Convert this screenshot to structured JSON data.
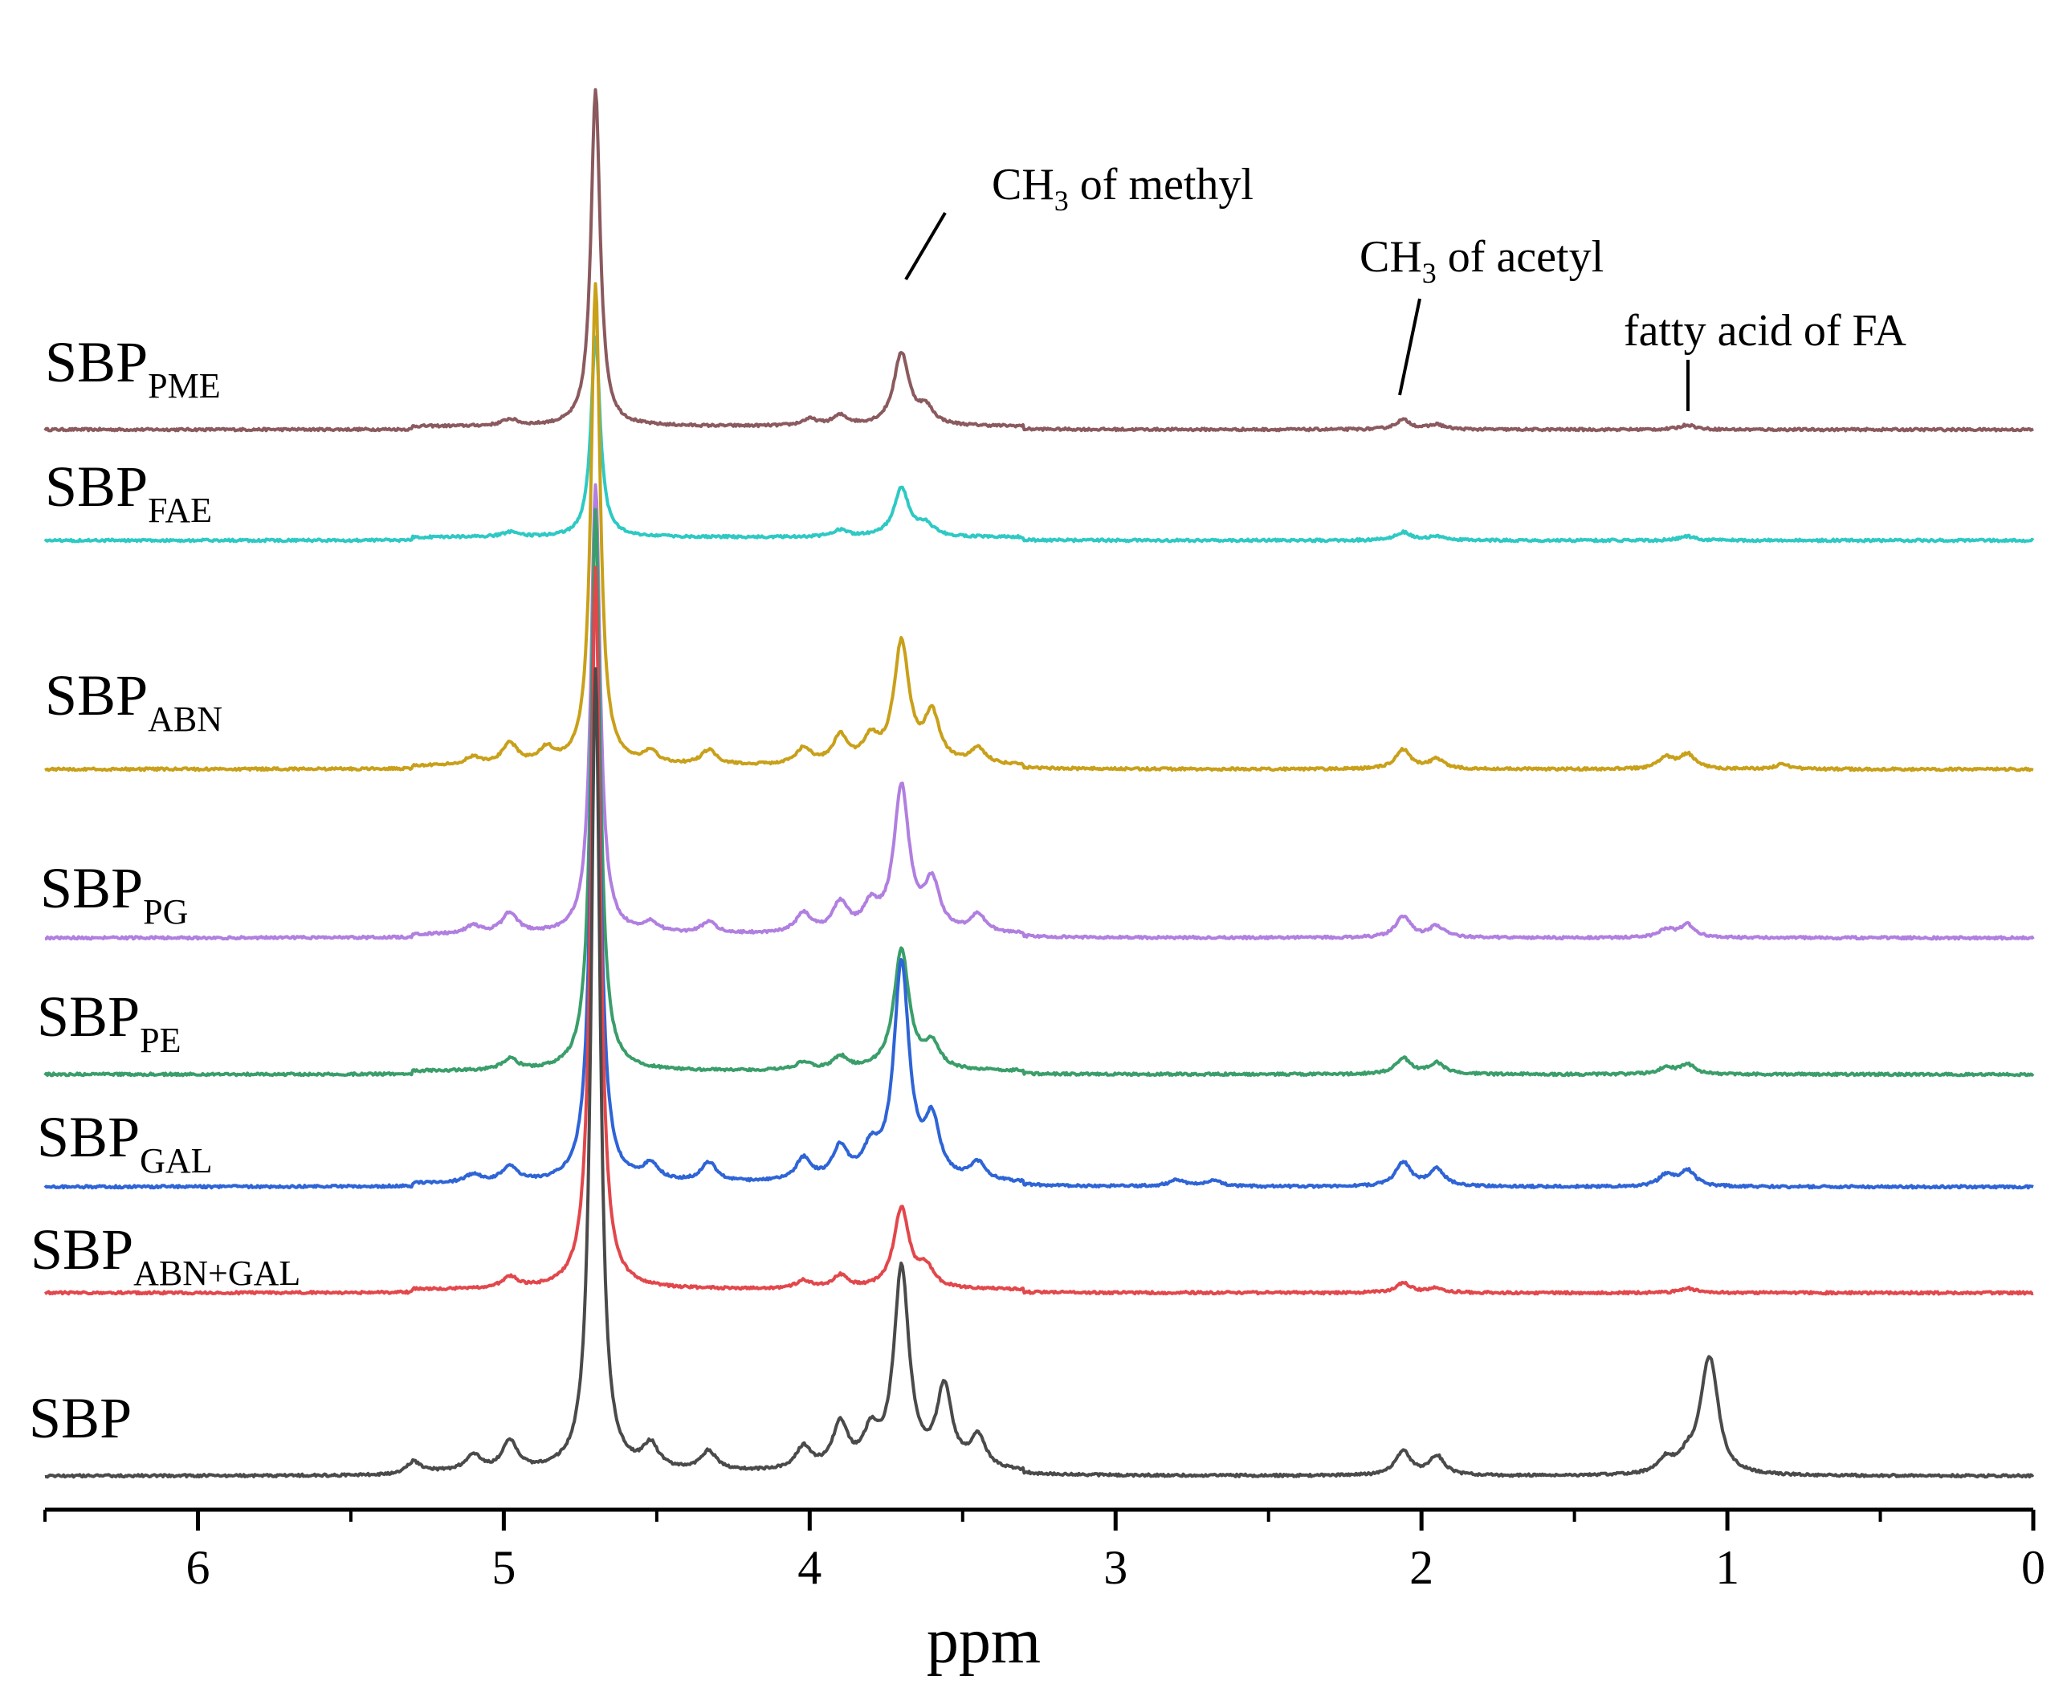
{
  "chart_data": {
    "type": "line",
    "title": "",
    "xlabel": "ppm",
    "ylabel": "",
    "xlim": [
      6.5,
      0
    ],
    "x_reversed": true,
    "x_ticks": [
      "6",
      "5",
      "4",
      "3",
      "2",
      "1",
      "0"
    ],
    "grid": false,
    "peaks_ppm": {
      "water": 4.7,
      "methyl_ch3": 3.7,
      "acetyl_ch3": 2.06,
      "fa_fatty_acid": 1.13
    },
    "annotations": [
      {
        "text_main": "CH",
        "text_sub": "3",
        "text_rest": " of methyl",
        "ppm": 3.7
      },
      {
        "text_main": "CH",
        "text_sub": "3",
        "text_rest": " of acetyl",
        "ppm": 2.06
      },
      {
        "text_main": "fatty acid of FA",
        "text_sub": "",
        "text_rest": "",
        "ppm": 1.13
      }
    ],
    "series": [
      {
        "name": "SBP_PME",
        "label_main": "SBP",
        "label_sub": "PME",
        "color": "#8B5A5E",
        "baseline_ppm_offset": 0,
        "peaks": [
          [
            4.7,
            420
          ],
          [
            3.7,
            90
          ],
          [
            3.62,
            20
          ],
          [
            3.9,
            12
          ],
          [
            4.0,
            8
          ],
          [
            2.06,
            12
          ],
          [
            1.95,
            6
          ],
          [
            1.13,
            6
          ],
          [
            4.98,
            8
          ]
        ]
      },
      {
        "name": "SBP_FAE",
        "label_main": "SBP",
        "label_sub": "FAE",
        "color": "#2FC9C4",
        "baseline_ppm_offset": 0,
        "peaks": [
          [
            4.7,
            250
          ],
          [
            3.7,
            60
          ],
          [
            3.62,
            14
          ],
          [
            3.9,
            8
          ],
          [
            2.06,
            10
          ],
          [
            1.95,
            5
          ],
          [
            1.13,
            5
          ],
          [
            4.98,
            6
          ]
        ]
      },
      {
        "name": "SBP_ABN",
        "label_main": "SBP",
        "label_sub": "ABN",
        "color": "#C9A01A",
        "baseline_ppm_offset": 0,
        "peaks": [
          [
            4.7,
            600
          ],
          [
            3.7,
            150
          ],
          [
            3.6,
            60
          ],
          [
            3.45,
            20
          ],
          [
            3.9,
            34
          ],
          [
            3.8,
            28
          ],
          [
            4.02,
            20
          ],
          [
            4.33,
            18
          ],
          [
            4.52,
            14
          ],
          [
            4.98,
            26
          ],
          [
            4.86,
            18
          ],
          [
            5.1,
            10
          ],
          [
            2.06,
            24
          ],
          [
            1.95,
            12
          ],
          [
            1.2,
            14
          ],
          [
            1.13,
            18
          ],
          [
            0.82,
            6
          ]
        ]
      },
      {
        "name": "SBP_PG",
        "label_main": "SBP",
        "label_sub": "PG",
        "color": "#B07FE0",
        "baseline_ppm_offset": 0,
        "peaks": [
          [
            4.7,
            560
          ],
          [
            3.7,
            180
          ],
          [
            3.6,
            60
          ],
          [
            3.45,
            22
          ],
          [
            3.9,
            36
          ],
          [
            3.8,
            30
          ],
          [
            4.02,
            24
          ],
          [
            4.33,
            14
          ],
          [
            4.52,
            12
          ],
          [
            4.98,
            26
          ],
          [
            5.1,
            10
          ],
          [
            2.06,
            26
          ],
          [
            1.95,
            14
          ],
          [
            1.2,
            10
          ],
          [
            1.13,
            16
          ]
        ]
      },
      {
        "name": "SBP_PE",
        "label_main": "SBP",
        "label_sub": "PE",
        "color": "#3A9E6A",
        "baseline_ppm_offset": 0,
        "peaks": [
          [
            4.7,
            700
          ],
          [
            3.7,
            150
          ],
          [
            3.6,
            30
          ],
          [
            3.9,
            16
          ],
          [
            4.02,
            10
          ],
          [
            4.98,
            14
          ],
          [
            2.06,
            20
          ],
          [
            1.95,
            14
          ],
          [
            1.2,
            8
          ],
          [
            1.13,
            12
          ]
        ]
      },
      {
        "name": "SBP_GAL",
        "label_main": "SBP",
        "label_sub": "GAL",
        "color": "#2E64D6",
        "baseline_ppm_offset": 0,
        "peaks": [
          [
            4.7,
            760
          ],
          [
            3.7,
            270
          ],
          [
            3.6,
            70
          ],
          [
            3.45,
            22
          ],
          [
            3.9,
            40
          ],
          [
            3.8,
            34
          ],
          [
            4.02,
            28
          ],
          [
            4.33,
            24
          ],
          [
            4.52,
            20
          ],
          [
            4.98,
            20
          ],
          [
            5.1,
            10
          ],
          [
            2.06,
            30
          ],
          [
            1.95,
            22
          ],
          [
            1.2,
            14
          ],
          [
            1.13,
            20
          ],
          [
            2.8,
            8
          ],
          [
            2.68,
            8
          ]
        ]
      },
      {
        "name": "SBP_ABN+GAL",
        "label_main": "SBP",
        "label_sub": "ABN+GAL",
        "color": "#E2474B",
        "baseline_ppm_offset": 0,
        "peaks": [
          [
            4.7,
            900
          ],
          [
            3.7,
            100
          ],
          [
            3.62,
            24
          ],
          [
            3.9,
            16
          ],
          [
            4.02,
            10
          ],
          [
            4.98,
            14
          ],
          [
            2.06,
            12
          ],
          [
            1.95,
            6
          ],
          [
            1.13,
            6
          ]
        ]
      },
      {
        "name": "SBP",
        "label_main": "SBP",
        "label_sub": "",
        "color": "#4A4A4A",
        "baseline_ppm_offset": 0,
        "peaks": [
          [
            4.7,
            1000
          ],
          [
            3.7,
            250
          ],
          [
            3.56,
            100
          ],
          [
            3.45,
            40
          ],
          [
            3.9,
            56
          ],
          [
            3.8,
            40
          ],
          [
            4.02,
            28
          ],
          [
            4.33,
            24
          ],
          [
            4.52,
            30
          ],
          [
            4.98,
            36
          ],
          [
            5.1,
            20
          ],
          [
            5.3,
            14
          ],
          [
            2.06,
            30
          ],
          [
            1.95,
            24
          ],
          [
            1.2,
            18
          ],
          [
            1.13,
            18
          ],
          [
            1.05,
            90
          ],
          [
            1.07,
            70
          ]
        ]
      }
    ]
  }
}
